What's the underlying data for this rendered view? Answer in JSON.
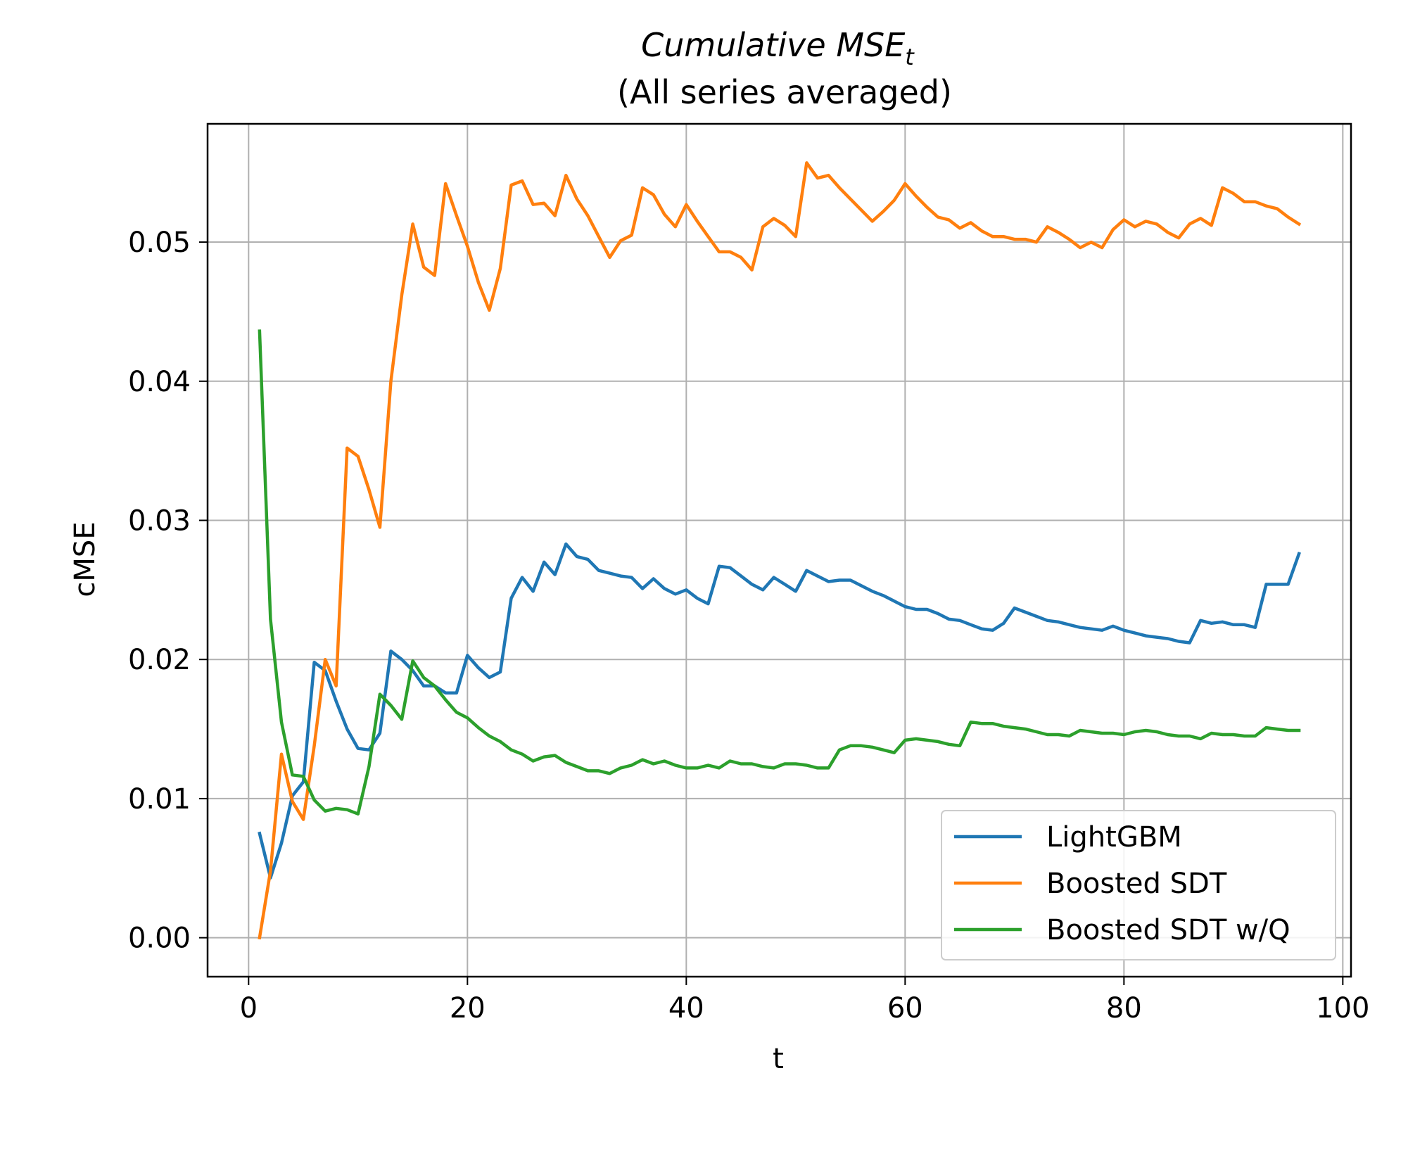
{
  "chart_data": {
    "type": "line",
    "title": "Cumulative MSE",
    "title_subscript": "t",
    "subtitle": "(All series averaged)",
    "xlabel": "t",
    "ylabel": "cMSE",
    "xlim": [
      -3.75,
      100.75
    ],
    "ylim": [
      -0.0028,
      0.0585
    ],
    "xticks": [
      0,
      20,
      40,
      60,
      80,
      100
    ],
    "xtick_labels": [
      "0",
      "20",
      "40",
      "60",
      "80",
      "100"
    ],
    "yticks": [
      0.0,
      0.01,
      0.02,
      0.03,
      0.04,
      0.05
    ],
    "ytick_labels": [
      "0.00",
      "0.01",
      "0.02",
      "0.03",
      "0.04",
      "0.05"
    ],
    "grid": true,
    "legend_position": "lower right",
    "x": [
      1,
      2,
      3,
      4,
      5,
      6,
      7,
      8,
      9,
      10,
      11,
      12,
      13,
      14,
      15,
      16,
      17,
      18,
      19,
      20,
      21,
      22,
      23,
      24,
      25,
      26,
      27,
      28,
      29,
      30,
      31,
      32,
      33,
      34,
      35,
      36,
      37,
      38,
      39,
      40,
      41,
      42,
      43,
      44,
      45,
      46,
      47,
      48,
      49,
      50,
      51,
      52,
      53,
      54,
      55,
      56,
      57,
      58,
      59,
      60,
      61,
      62,
      63,
      64,
      65,
      66,
      67,
      68,
      69,
      70,
      71,
      72,
      73,
      74,
      75,
      76,
      77,
      78,
      79,
      80,
      81,
      82,
      83,
      84,
      85,
      86,
      87,
      88,
      89,
      90,
      91,
      92,
      93,
      94,
      95,
      96
    ],
    "series": [
      {
        "name": "LightGBM",
        "color": "#1f77b4",
        "values": [
          0.0075,
          0.0043,
          0.0068,
          0.0102,
          0.0112,
          0.0198,
          0.0192,
          0.017,
          0.015,
          0.0136,
          0.0135,
          0.0147,
          0.0206,
          0.02,
          0.0192,
          0.0181,
          0.0181,
          0.0176,
          0.0176,
          0.0203,
          0.0194,
          0.0187,
          0.0191,
          0.0244,
          0.0259,
          0.0249,
          0.027,
          0.0261,
          0.0283,
          0.0274,
          0.0272,
          0.0264,
          0.0262,
          0.026,
          0.0259,
          0.0251,
          0.0258,
          0.0251,
          0.0247,
          0.025,
          0.0244,
          0.024,
          0.0267,
          0.0266,
          0.026,
          0.0254,
          0.025,
          0.0259,
          0.0254,
          0.0249,
          0.0264,
          0.026,
          0.0256,
          0.0257,
          0.0257,
          0.0253,
          0.0249,
          0.0246,
          0.0242,
          0.0238,
          0.0236,
          0.0236,
          0.0233,
          0.0229,
          0.0228,
          0.0225,
          0.0222,
          0.0221,
          0.0226,
          0.0237,
          0.0234,
          0.0231,
          0.0228,
          0.0227,
          0.0225,
          0.0223,
          0.0222,
          0.0221,
          0.0224,
          0.0221,
          0.0219,
          0.0217,
          0.0216,
          0.0215,
          0.0213,
          0.0212,
          0.0228,
          0.0226,
          0.0227,
          0.0225,
          0.0225,
          0.0223,
          0.0254,
          0.0254,
          0.0254,
          0.0276
        ]
      },
      {
        "name": "Boosted SDT",
        "color": "#ff7f0e",
        "values": [
          0.0,
          0.0048,
          0.0132,
          0.0098,
          0.0085,
          0.0138,
          0.02,
          0.0181,
          0.0352,
          0.0346,
          0.0322,
          0.0295,
          0.04,
          0.0462,
          0.0513,
          0.0482,
          0.0476,
          0.0542,
          0.0519,
          0.0497,
          0.0471,
          0.0451,
          0.0481,
          0.0541,
          0.0544,
          0.0527,
          0.0528,
          0.0519,
          0.0548,
          0.0531,
          0.0519,
          0.0504,
          0.0489,
          0.0501,
          0.0505,
          0.0539,
          0.0534,
          0.052,
          0.0511,
          0.0527,
          0.0515,
          0.0504,
          0.0493,
          0.0493,
          0.0489,
          0.048,
          0.0511,
          0.0517,
          0.0512,
          0.0504,
          0.0557,
          0.0546,
          0.0548,
          0.0539,
          0.0531,
          0.0523,
          0.0515,
          0.0522,
          0.053,
          0.0542,
          0.0533,
          0.0525,
          0.0518,
          0.0516,
          0.051,
          0.0514,
          0.0508,
          0.0504,
          0.0504,
          0.0502,
          0.0502,
          0.05,
          0.0511,
          0.0507,
          0.0502,
          0.0496,
          0.05,
          0.0496,
          0.0509,
          0.0516,
          0.0511,
          0.0515,
          0.0513,
          0.0507,
          0.0503,
          0.0513,
          0.0517,
          0.0512,
          0.0539,
          0.0535,
          0.0529,
          0.0529,
          0.0526,
          0.0524,
          0.0518,
          0.0513
        ]
      },
      {
        "name": "Boosted SDT w/Q",
        "color": "#2ca02c",
        "values": [
          0.0436,
          0.0229,
          0.0155,
          0.0117,
          0.0116,
          0.0099,
          0.0091,
          0.0093,
          0.0092,
          0.0089,
          0.0123,
          0.0175,
          0.0167,
          0.0157,
          0.0199,
          0.0187,
          0.0181,
          0.0171,
          0.0162,
          0.0158,
          0.0151,
          0.0145,
          0.0141,
          0.0135,
          0.0132,
          0.0127,
          0.013,
          0.0131,
          0.0126,
          0.0123,
          0.012,
          0.012,
          0.0118,
          0.0122,
          0.0124,
          0.0128,
          0.0125,
          0.0127,
          0.0124,
          0.0122,
          0.0122,
          0.0124,
          0.0122,
          0.0127,
          0.0125,
          0.0125,
          0.0123,
          0.0122,
          0.0125,
          0.0125,
          0.0124,
          0.0122,
          0.0122,
          0.0135,
          0.0138,
          0.0138,
          0.0137,
          0.0135,
          0.0133,
          0.0142,
          0.0143,
          0.0142,
          0.0141,
          0.0139,
          0.0138,
          0.0155,
          0.0154,
          0.0154,
          0.0152,
          0.0151,
          0.015,
          0.0148,
          0.0146,
          0.0146,
          0.0145,
          0.0149,
          0.0148,
          0.0147,
          0.0147,
          0.0146,
          0.0148,
          0.0149,
          0.0148,
          0.0146,
          0.0145,
          0.0145,
          0.0143,
          0.0147,
          0.0146,
          0.0146,
          0.0145,
          0.0145,
          0.0151,
          0.015,
          0.0149,
          0.0149
        ]
      }
    ]
  }
}
